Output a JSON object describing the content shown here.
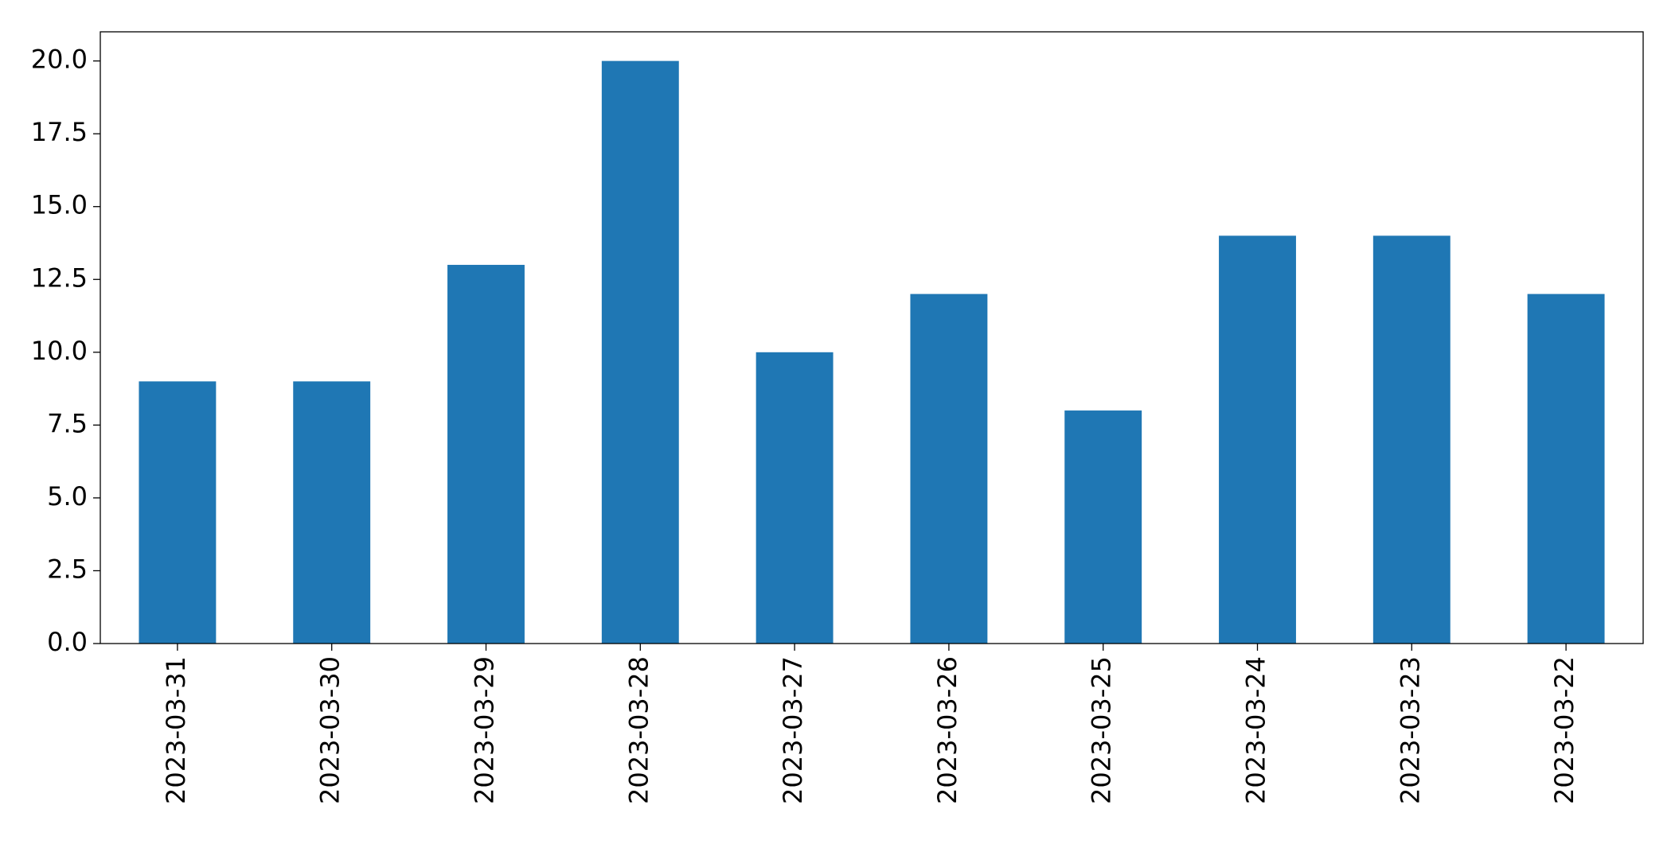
{
  "chart_data": {
    "type": "bar",
    "categories": [
      "2023-03-31",
      "2023-03-30",
      "2023-03-29",
      "2023-03-28",
      "2023-03-27",
      "2023-03-26",
      "2023-03-25",
      "2023-03-24",
      "2023-03-23",
      "2023-03-22"
    ],
    "values": [
      9,
      9,
      13,
      20,
      10,
      12,
      8,
      14,
      14,
      12
    ],
    "color": "#1f77b4",
    "ylim": [
      0,
      21
    ],
    "yticks": [
      {
        "value": 0,
        "label": "0.0"
      },
      2.5,
      {
        "value": 5,
        "label": "5.0"
      },
      7.5,
      {
        "value": 10,
        "label": "10.0"
      },
      12.5,
      {
        "value": 15,
        "label": "15.0"
      },
      17.5,
      {
        "value": 20,
        "label": "20.0"
      }
    ],
    "grid": false
  }
}
